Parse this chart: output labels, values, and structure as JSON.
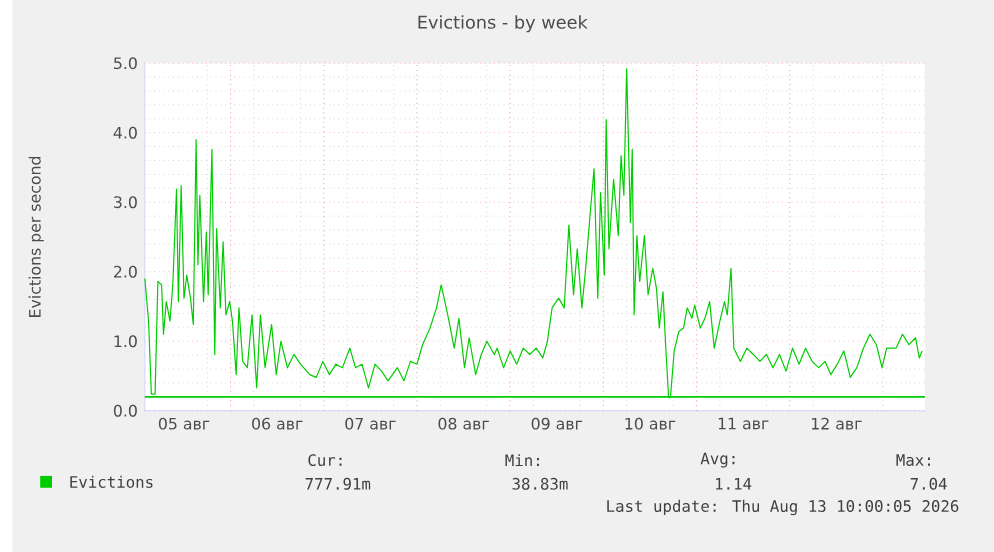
{
  "chart_data": {
    "type": "line",
    "title": "Evictions - by week",
    "ylabel": "Evictions per second",
    "xlim": [
      4.08,
      12.45
    ],
    "ylim": [
      0,
      5
    ],
    "xticks": [
      {
        "value": 4.5,
        "label": "05 авг"
      },
      {
        "value": 5.5,
        "label": "06 авг"
      },
      {
        "value": 6.5,
        "label": "07 авг"
      },
      {
        "value": 7.5,
        "label": "08 авг"
      },
      {
        "value": 8.5,
        "label": "09 авг"
      },
      {
        "value": 9.5,
        "label": "10 авг"
      },
      {
        "value": 10.5,
        "label": "11 авг"
      },
      {
        "value": 11.5,
        "label": "12 авг"
      },
      {
        "value": 5,
        "label": null
      },
      {
        "value": 6,
        "label": null
      },
      {
        "value": 7,
        "label": null
      },
      {
        "value": 8,
        "label": null
      },
      {
        "value": 9,
        "label": null
      },
      {
        "value": 10,
        "label": null
      },
      {
        "value": 11,
        "label": null
      },
      {
        "value": 12,
        "label": null
      }
    ],
    "yticks": [
      {
        "value": 0,
        "label": "0.0"
      },
      {
        "value": 1,
        "label": "1.0"
      },
      {
        "value": 2,
        "label": "2.0"
      },
      {
        "value": 3,
        "label": "3.0"
      },
      {
        "value": 4,
        "label": "4.0"
      },
      {
        "value": 5,
        "label": "5.0"
      }
    ],
    "grid": true,
    "legend": "bottom left",
    "ref_lines": [
      {
        "axis": "y",
        "value": 0.2,
        "color": "#00cc00"
      }
    ],
    "series": [
      {
        "name": "Evictions",
        "color": "#00cc00",
        "x": [
          4.08,
          4.12,
          4.15,
          4.19,
          4.22,
          4.26,
          4.28,
          4.31,
          4.35,
          4.38,
          4.42,
          4.44,
          4.47,
          4.5,
          4.53,
          4.57,
          4.6,
          4.63,
          4.65,
          4.67,
          4.71,
          4.74,
          4.76,
          4.8,
          4.83,
          4.85,
          4.89,
          4.92,
          4.95,
          4.99,
          5.02,
          5.06,
          5.09,
          5.13,
          5.18,
          5.23,
          5.28,
          5.32,
          5.37,
          5.44,
          5.49,
          5.54,
          5.61,
          5.68,
          5.75,
          5.85,
          5.92,
          5.99,
          6.06,
          6.13,
          6.2,
          6.28,
          6.34,
          6.41,
          6.48,
          6.55,
          6.62,
          6.69,
          6.79,
          6.86,
          6.93,
          7.0,
          7.06,
          7.14,
          7.21,
          7.26,
          7.33,
          7.4,
          7.45,
          7.51,
          7.56,
          7.63,
          7.69,
          7.75,
          7.83,
          7.86,
          7.93,
          8.0,
          8.07,
          8.14,
          8.21,
          8.28,
          8.35,
          8.4,
          8.45,
          8.52,
          8.58,
          8.63,
          8.68,
          8.72,
          8.77,
          8.81,
          8.86,
          8.9,
          8.94,
          8.97,
          9.01,
          9.03,
          9.06,
          9.11,
          9.16,
          9.19,
          9.22,
          9.25,
          9.29,
          9.31,
          9.33,
          9.36,
          9.39,
          9.44,
          9.48,
          9.53,
          9.57,
          9.6,
          9.64,
          9.67,
          9.7,
          9.72,
          9.76,
          9.81,
          9.86,
          9.9,
          9.95,
          9.98,
          10.04,
          10.09,
          10.14,
          10.19,
          10.25,
          10.3,
          10.33,
          10.37,
          10.4,
          10.47,
          10.54,
          10.61,
          10.68,
          10.75,
          10.82,
          10.89,
          10.96,
          11.03,
          11.1,
          11.17,
          11.24,
          11.31,
          11.38,
          11.44,
          11.51,
          11.58,
          11.65,
          11.72,
          11.79,
          11.86,
          11.93,
          11.99,
          12.04,
          12.14,
          12.21,
          12.28,
          12.35,
          12.39,
          12.42
        ],
        "values": [
          1.9,
          1.29,
          0.24,
          0.24,
          1.86,
          1.81,
          1.1,
          1.57,
          1.29,
          1.81,
          3.19,
          1.57,
          3.24,
          1.62,
          1.95,
          1.62,
          1.24,
          3.9,
          2.1,
          3.1,
          1.57,
          2.57,
          1.67,
          3.76,
          0.81,
          2.62,
          1.48,
          2.43,
          1.38,
          1.57,
          1.29,
          0.52,
          1.48,
          0.71,
          0.62,
          1.38,
          0.33,
          1.38,
          0.62,
          1.24,
          0.52,
          1.0,
          0.62,
          0.81,
          0.67,
          0.52,
          0.48,
          0.71,
          0.52,
          0.67,
          0.62,
          0.9,
          0.62,
          0.67,
          0.33,
          0.67,
          0.57,
          0.43,
          0.62,
          0.43,
          0.71,
          0.67,
          0.95,
          1.19,
          1.48,
          1.81,
          1.38,
          0.9,
          1.33,
          0.62,
          1.05,
          0.52,
          0.81,
          1.0,
          0.81,
          0.9,
          0.62,
          0.86,
          0.67,
          0.9,
          0.81,
          0.9,
          0.76,
          1.0,
          1.48,
          1.62,
          1.48,
          2.67,
          1.67,
          2.33,
          1.48,
          2.05,
          2.86,
          3.48,
          1.62,
          3.14,
          1.95,
          4.19,
          2.33,
          3.33,
          2.52,
          3.67,
          3.1,
          4.92,
          2.71,
          3.76,
          1.38,
          2.52,
          1.86,
          2.52,
          1.67,
          2.05,
          1.76,
          1.19,
          1.71,
          0.9,
          0.19,
          0.19,
          0.86,
          1.14,
          1.19,
          1.48,
          1.33,
          1.52,
          1.19,
          1.33,
          1.57,
          0.9,
          1.29,
          1.57,
          1.38,
          2.05,
          0.9,
          0.71,
          0.9,
          0.81,
          0.71,
          0.81,
          0.62,
          0.81,
          0.57,
          0.9,
          0.67,
          0.9,
          0.71,
          0.62,
          0.71,
          0.52,
          0.67,
          0.86,
          0.48,
          0.62,
          0.9,
          1.1,
          0.95,
          0.62,
          0.9,
          0.9,
          1.1,
          0.95,
          1.05,
          0.76,
          0.86
        ]
      }
    ],
    "annotations": [
      "Cur:",
      "Min:",
      "Avg:",
      "Max:",
      "777.91m",
      "38.83m",
      "1.14",
      "7.04",
      "Last update: Thu Aug 13 10:00:05 2026"
    ]
  }
}
